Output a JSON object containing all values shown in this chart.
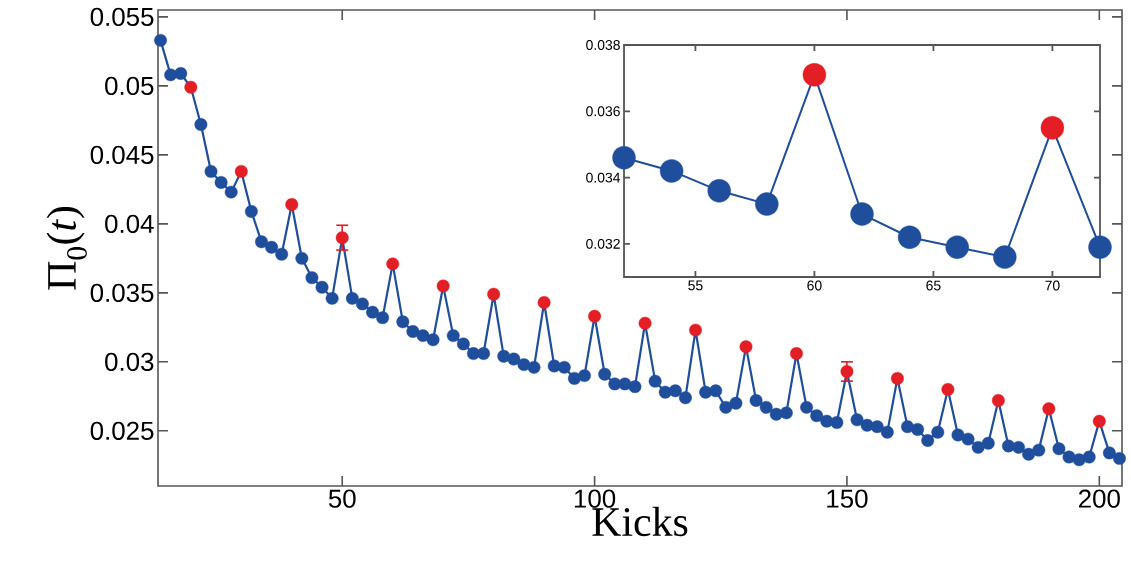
{
  "chart_data": [
    {
      "type": "line",
      "xlabel": "Kicks",
      "ylabel": "Π$_{0}$(*t*)",
      "marker": "circle",
      "line_style": "solid",
      "xlim": [
        13.5,
        204.5
      ],
      "ylim": [
        0.021,
        0.0555
      ],
      "xticks": [
        50,
        100,
        150,
        200
      ],
      "yticks": [
        0.025,
        0.03,
        0.035,
        0.04,
        0.045,
        0.05,
        0.055
      ],
      "x": [
        14,
        16,
        18,
        20,
        22,
        24,
        26,
        28,
        30,
        32,
        34,
        36,
        38,
        40,
        42,
        44,
        46,
        48,
        50,
        52,
        54,
        56,
        58,
        60,
        62,
        64,
        66,
        68,
        70,
        72,
        74,
        76,
        78,
        80,
        82,
        84,
        86,
        88,
        90,
        92,
        94,
        96,
        98,
        100,
        102,
        104,
        106,
        108,
        110,
        112,
        114,
        116,
        118,
        120,
        122,
        124,
        126,
        128,
        130,
        132,
        134,
        136,
        138,
        140,
        142,
        144,
        146,
        148,
        150,
        152,
        154,
        156,
        158,
        160,
        162,
        164,
        166,
        168,
        170,
        172,
        174,
        176,
        178,
        180,
        182,
        184,
        186,
        188,
        190,
        192,
        194,
        196,
        198,
        200,
        202,
        204
      ],
      "series": [
        {
          "color": "#1f4e9c",
          "values": [
            0.0533,
            0.0508,
            0.0509,
            0.0499,
            0.0472,
            0.0438,
            0.043,
            0.0423,
            0.0438,
            0.0409,
            0.0387,
            0.0383,
            0.0378,
            0.0414,
            0.0375,
            0.0361,
            0.0354,
            0.0346,
            0.039,
            0.0346,
            0.0342,
            0.0336,
            0.0332,
            0.0371,
            0.0329,
            0.0322,
            0.0319,
            0.0316,
            0.0355,
            0.0319,
            0.0313,
            0.0306,
            0.0306,
            0.0349,
            0.0304,
            0.0302,
            0.0298,
            0.0296,
            0.0343,
            0.0297,
            0.0296,
            0.0288,
            0.029,
            0.0333,
            0.0291,
            0.0284,
            0.0284,
            0.0282,
            0.0328,
            0.0286,
            0.0278,
            0.0279,
            0.0274,
            0.0323,
            0.0278,
            0.0279,
            0.0267,
            0.027,
            0.0311,
            0.0272,
            0.0267,
            0.0262,
            0.0263,
            0.0306,
            0.0267,
            0.0261,
            0.0257,
            0.0256,
            0.0293,
            0.0258,
            0.0254,
            0.0253,
            0.0249,
            0.0288,
            0.0253,
            0.0251,
            0.0243,
            0.0249,
            0.028,
            0.0247,
            0.0244,
            0.0238,
            0.0241,
            0.0272,
            0.0239,
            0.0238,
            0.0233,
            0.0236,
            0.0266,
            0.0237,
            0.0231,
            0.0229,
            0.0231,
            0.0257,
            0.0234,
            0.023
          ],
          "colors": [
            "#1f4e9c",
            "#1f4e9c",
            "#1f4e9c",
            "#e31e24",
            "#1f4e9c",
            "#1f4e9c",
            "#1f4e9c",
            "#1f4e9c",
            "#e31e24",
            "#1f4e9c",
            "#1f4e9c",
            "#1f4e9c",
            "#1f4e9c",
            "#e31e24",
            "#1f4e9c",
            "#1f4e9c",
            "#1f4e9c",
            "#1f4e9c",
            "#e31e24",
            "#1f4e9c",
            "#1f4e9c",
            "#1f4e9c",
            "#1f4e9c",
            "#e31e24",
            "#1f4e9c",
            "#1f4e9c",
            "#1f4e9c",
            "#1f4e9c",
            "#e31e24",
            "#1f4e9c",
            "#1f4e9c",
            "#1f4e9c",
            "#1f4e9c",
            "#e31e24",
            "#1f4e9c",
            "#1f4e9c",
            "#1f4e9c",
            "#1f4e9c",
            "#e31e24",
            "#1f4e9c",
            "#1f4e9c",
            "#1f4e9c",
            "#1f4e9c",
            "#e31e24",
            "#1f4e9c",
            "#1f4e9c",
            "#1f4e9c",
            "#1f4e9c",
            "#e31e24",
            "#1f4e9c",
            "#1f4e9c",
            "#1f4e9c",
            "#1f4e9c",
            "#e31e24",
            "#1f4e9c",
            "#1f4e9c",
            "#1f4e9c",
            "#1f4e9c",
            "#e31e24",
            "#1f4e9c",
            "#1f4e9c",
            "#1f4e9c",
            "#1f4e9c",
            "#e31e24",
            "#1f4e9c",
            "#1f4e9c",
            "#1f4e9c",
            "#1f4e9c",
            "#e31e24",
            "#1f4e9c",
            "#1f4e9c",
            "#1f4e9c",
            "#1f4e9c",
            "#e31e24",
            "#1f4e9c",
            "#1f4e9c",
            "#1f4e9c",
            "#1f4e9c",
            "#e31e24",
            "#1f4e9c",
            "#1f4e9c",
            "#1f4e9c",
            "#1f4e9c",
            "#e31e24",
            "#1f4e9c",
            "#1f4e9c",
            "#1f4e9c",
            "#1f4e9c",
            "#e31e24",
            "#1f4e9c",
            "#1f4e9c",
            "#1f4e9c",
            "#1f4e9c",
            "#e31e24",
            "#1f4e9c",
            "#1f4e9c"
          ],
          "errors": [
            null,
            null,
            null,
            null,
            null,
            null,
            null,
            null,
            null,
            null,
            null,
            null,
            null,
            null,
            null,
            null,
            null,
            null,
            0.0009,
            null,
            null,
            null,
            null,
            null,
            null,
            null,
            null,
            null,
            null,
            null,
            null,
            null,
            null,
            null,
            null,
            null,
            null,
            null,
            null,
            null,
            null,
            null,
            null,
            null,
            null,
            null,
            null,
            null,
            null,
            null,
            null,
            null,
            null,
            null,
            null,
            null,
            null,
            null,
            null,
            null,
            null,
            null,
            null,
            null,
            null,
            null,
            null,
            null,
            0.0007,
            null,
            null,
            null,
            null,
            null,
            null,
            null,
            null,
            null,
            null,
            null,
            null,
            null,
            null,
            null,
            null,
            null,
            null,
            null,
            null,
            null,
            null,
            null,
            null,
            null,
            null,
            null
          ]
        }
      ]
    },
    {
      "type": "line",
      "marker": "circle",
      "line_style": "solid",
      "xlim": [
        52,
        72
      ],
      "ylim": [
        0.031,
        0.038
      ],
      "xticks": [
        55,
        60,
        65,
        70
      ],
      "yticks": [
        0.032,
        0.034,
        0.036,
        0.038
      ],
      "x": [
        52,
        54,
        56,
        58,
        60,
        62,
        64,
        66,
        68,
        70,
        72
      ],
      "series": [
        {
          "color": "#1f4e9c",
          "values": [
            0.0346,
            0.0342,
            0.0336,
            0.0332,
            0.0371,
            0.0329,
            0.0322,
            0.0319,
            0.0316,
            0.0355,
            0.0319
          ],
          "colors": [
            "#1f4e9c",
            "#1f4e9c",
            "#1f4e9c",
            "#1f4e9c",
            "#e31e24",
            "#1f4e9c",
            "#1f4e9c",
            "#1f4e9c",
            "#1f4e9c",
            "#e31e24",
            "#1f4e9c"
          ]
        }
      ]
    }
  ]
}
